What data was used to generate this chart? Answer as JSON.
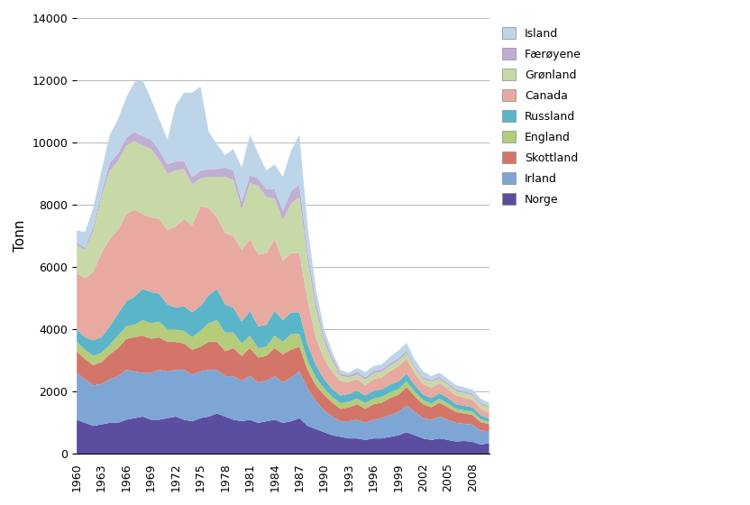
{
  "years": [
    1960,
    1961,
    1962,
    1963,
    1964,
    1965,
    1966,
    1967,
    1968,
    1969,
    1970,
    1971,
    1972,
    1973,
    1974,
    1975,
    1976,
    1977,
    1978,
    1979,
    1980,
    1981,
    1982,
    1983,
    1984,
    1985,
    1986,
    1987,
    1988,
    1989,
    1990,
    1991,
    1992,
    1993,
    1994,
    1995,
    1996,
    1997,
    1998,
    1999,
    2000,
    2001,
    2002,
    2003,
    2004,
    2005,
    2006,
    2007,
    2008,
    2009,
    2010
  ],
  "series": {
    "Norge": [
      1100,
      1000,
      900,
      950,
      1000,
      1000,
      1100,
      1150,
      1200,
      1100,
      1100,
      1150,
      1200,
      1100,
      1050,
      1150,
      1200,
      1300,
      1200,
      1100,
      1050,
      1100,
      1000,
      1050,
      1100,
      1000,
      1050,
      1150,
      900,
      800,
      700,
      600,
      550,
      500,
      500,
      450,
      500,
      500,
      550,
      600,
      700,
      600,
      500,
      450,
      500,
      450,
      400,
      420,
      390,
      300,
      350
    ],
    "Irland": [
      1500,
      1400,
      1300,
      1300,
      1400,
      1500,
      1600,
      1500,
      1400,
      1500,
      1600,
      1500,
      1500,
      1600,
      1500,
      1500,
      1500,
      1400,
      1300,
      1400,
      1300,
      1400,
      1300,
      1300,
      1400,
      1300,
      1400,
      1500,
      1200,
      900,
      700,
      600,
      500,
      550,
      600,
      550,
      600,
      650,
      700,
      750,
      850,
      750,
      650,
      650,
      700,
      650,
      600,
      550,
      550,
      450,
      380
    ],
    "Skottland": [
      700,
      650,
      650,
      700,
      800,
      900,
      1000,
      1100,
      1200,
      1100,
      1050,
      950,
      900,
      850,
      800,
      800,
      900,
      900,
      800,
      900,
      800,
      900,
      800,
      800,
      900,
      900,
      900,
      800,
      600,
      500,
      500,
      450,
      400,
      450,
      500,
      450,
      500,
      500,
      550,
      550,
      600,
      500,
      450,
      400,
      450,
      400,
      350,
      330,
      310,
      270,
      230
    ],
    "England": [
      300,
      300,
      300,
      300,
      300,
      400,
      400,
      400,
      500,
      500,
      500,
      400,
      400,
      400,
      400,
      500,
      600,
      700,
      600,
      500,
      400,
      400,
      300,
      300,
      400,
      400,
      500,
      400,
      300,
      250,
      200,
      180,
      180,
      180,
      180,
      180,
      180,
      180,
      180,
      180,
      180,
      150,
      130,
      120,
      120,
      120,
      100,
      100,
      100,
      90,
      80
    ],
    "Russland": [
      400,
      400,
      500,
      500,
      600,
      700,
      800,
      900,
      1000,
      1000,
      900,
      800,
      700,
      800,
      800,
      800,
      900,
      1000,
      900,
      800,
      700,
      800,
      700,
      700,
      800,
      700,
      700,
      700,
      500,
      400,
      300,
      250,
      250,
      250,
      250,
      250,
      250,
      250,
      250,
      250,
      250,
      200,
      180,
      180,
      180,
      180,
      150,
      150,
      150,
      130,
      100
    ],
    "Canada": [
      1800,
      1900,
      2200,
      2700,
      2800,
      2700,
      2800,
      2800,
      2400,
      2400,
      2400,
      2400,
      2600,
      2800,
      2800,
      3200,
      2800,
      2300,
      2300,
      2300,
      2300,
      2300,
      2300,
      2300,
      2300,
      1900,
      1900,
      1900,
      1400,
      900,
      650,
      550,
      450,
      380,
      380,
      330,
      380,
      380,
      430,
      480,
      480,
      380,
      330,
      330,
      330,
      280,
      280,
      260,
      240,
      210,
      190
    ],
    "Gronland": [
      900,
      900,
      1300,
      1800,
      2200,
      2200,
      2200,
      2200,
      2200,
      2200,
      1900,
      1800,
      1800,
      1600,
      1300,
      900,
      1000,
      1300,
      1800,
      1800,
      1300,
      1800,
      2200,
      1800,
      1300,
      1300,
      1600,
      1800,
      1300,
      900,
      550,
      350,
      180,
      140,
      140,
      180,
      180,
      180,
      180,
      180,
      180,
      180,
      180,
      180,
      140,
      140,
      140,
      140,
      140,
      140,
      140
    ],
    "Faroeyene": [
      80,
      80,
      150,
      150,
      250,
      250,
      250,
      300,
      300,
      300,
      300,
      300,
      300,
      250,
      250,
      250,
      250,
      250,
      300,
      300,
      250,
      250,
      250,
      250,
      300,
      300,
      400,
      400,
      300,
      250,
      150,
      130,
      80,
      80,
      80,
      80,
      80,
      80,
      80,
      80,
      80,
      70,
      60,
      60,
      60,
      60,
      60,
      60,
      60,
      50,
      50
    ],
    "Island": [
      400,
      500,
      600,
      700,
      900,
      1100,
      1300,
      1600,
      1800,
      1300,
      1000,
      800,
      1800,
      2200,
      2700,
      2700,
      1200,
      800,
      400,
      700,
      1100,
      1300,
      800,
      600,
      800,
      1100,
      1300,
      1600,
      800,
      400,
      250,
      150,
      100,
      80,
      130,
      160,
      160,
      160,
      200,
      250,
      250,
      200,
      170,
      130,
      130,
      130,
      130,
      130,
      130,
      130,
      130
    ]
  },
  "colors": {
    "Norge": "#5b4ea0",
    "Irland": "#7da6d4",
    "Skottland": "#d4756a",
    "England": "#b5cc7a",
    "Russland": "#5ab5c8",
    "Canada": "#e8a9a0",
    "Gronland": "#c8d9a8",
    "Faroeyene": "#c0aed4",
    "Island": "#bdd5e8"
  },
  "ylabel": "Tonn",
  "ylim": [
    0,
    14000
  ],
  "yticks": [
    0,
    2000,
    4000,
    6000,
    8000,
    10000,
    12000,
    14000
  ],
  "background_color": "#ffffff",
  "grid_color": "#b8b8b8"
}
